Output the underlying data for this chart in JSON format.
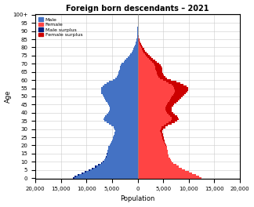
{
  "title": "Foreign born descendants – 2021",
  "xlabel": "Population",
  "ylabel": "Age",
  "xlim": [
    -20000,
    20000
  ],
  "xticks": [
    -20000,
    -15000,
    -10000,
    -5000,
    0,
    5000,
    10000,
    15000,
    20000
  ],
  "xticklabels": [
    "20,000",
    "15,000",
    "10,000",
    "5,000",
    "0",
    "5,000",
    "10,000",
    "15,000",
    "20,000"
  ],
  "age_max": 101,
  "male_color": "#4472C4",
  "female_color": "#FF4444",
  "male_surplus_color": "#002080",
  "female_surplus_color": "#CC0000",
  "background_color": "#FFFFFF",
  "grid_color": "#CCCCCC",
  "male": [
    12600,
    12300,
    11700,
    11000,
    10300,
    9600,
    8900,
    8300,
    7700,
    7200,
    6900,
    6600,
    6400,
    6200,
    6100,
    6000,
    5900,
    5850,
    5800,
    5700,
    5500,
    5300,
    5100,
    4950,
    4850,
    4800,
    4700,
    4600,
    4500,
    4400,
    4500,
    4700,
    5100,
    5600,
    6100,
    6500,
    6700,
    6600,
    6400,
    6100,
    5800,
    5600,
    5400,
    5500,
    5600,
    5700,
    5900,
    6200,
    6400,
    6500,
    6700,
    6900,
    7100,
    7200,
    7200,
    7100,
    6900,
    6600,
    6100,
    5600,
    4900,
    4400,
    4100,
    3900,
    3800,
    3700,
    3600,
    3500,
    3450,
    3300,
    3100,
    2750,
    2500,
    2200,
    1900,
    1650,
    1400,
    1200,
    1000,
    830,
    670,
    540,
    430,
    340,
    265,
    200,
    150,
    110,
    80,
    58,
    40,
    27,
    18,
    12,
    8,
    5,
    3,
    2,
    1,
    1,
    0
  ],
  "female": [
    12400,
    12000,
    11400,
    10700,
    10000,
    9300,
    8700,
    8100,
    7500,
    7000,
    6700,
    6500,
    6300,
    6100,
    6000,
    5950,
    5950,
    5900,
    5800,
    5750,
    5600,
    5450,
    5300,
    5200,
    5100,
    5100,
    5000,
    4900,
    4850,
    4800,
    5000,
    5400,
    5900,
    6600,
    7300,
    7800,
    8000,
    7900,
    7700,
    7300,
    7000,
    6700,
    6600,
    6700,
    6900,
    7100,
    7500,
    7900,
    8200,
    8500,
    8800,
    9100,
    9400,
    9700,
    9900,
    9800,
    9500,
    9000,
    8300,
    7500,
    6500,
    5800,
    5400,
    5100,
    4950,
    4850,
    4800,
    4750,
    4700,
    4550,
    4200,
    3750,
    3400,
    3000,
    2650,
    2300,
    2000,
    1750,
    1500,
    1270,
    1030,
    840,
    680,
    550,
    430,
    340,
    255,
    190,
    138,
    100,
    70,
    48,
    32,
    21,
    14,
    9,
    6,
    4,
    2,
    1,
    1
  ]
}
